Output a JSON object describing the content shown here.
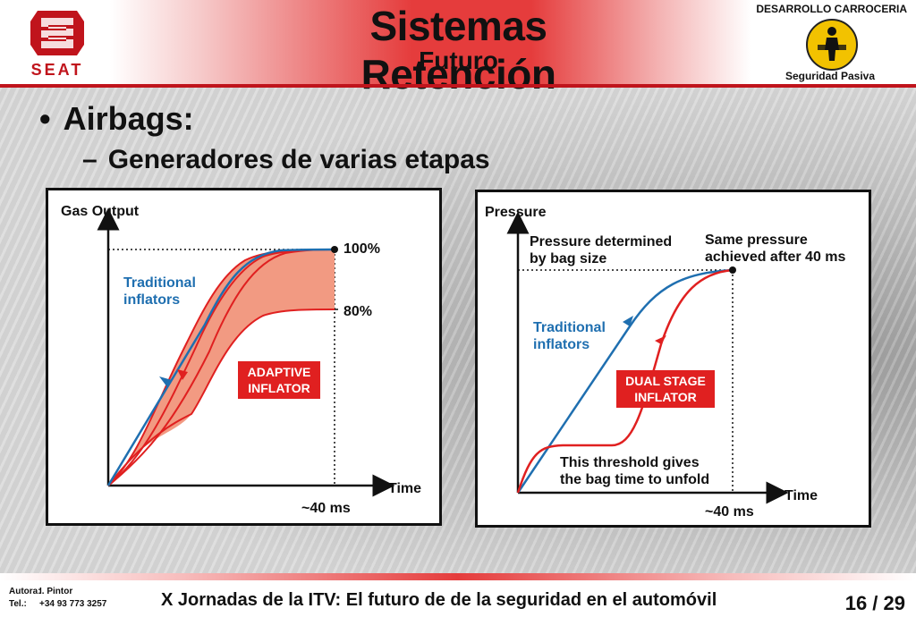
{
  "header": {
    "title": "Sistemas Retención",
    "subtitle": "Futuro",
    "department": "DESARROLLO CARROCERIA",
    "area": "Seguridad Pasiva",
    "brand": "SEAT"
  },
  "bullets": {
    "level1": "Airbags:",
    "level2": "Generadores de varias etapas"
  },
  "colors": {
    "brand_red": "#c0141c",
    "traditional_line": "#1f6fb0",
    "adaptive_line": "#e02020",
    "adaptive_fill": "#f29a82"
  },
  "chart_data": [
    {
      "type": "line",
      "title": "Gas Output",
      "xlabel": "Time",
      "x_marker": "~40 ms",
      "levels": [
        "100%",
        "80%"
      ],
      "series": [
        {
          "name": "Traditional inflators",
          "color": "#1f6fb0"
        },
        {
          "name": "ADAPTIVE INFLATOR",
          "color": "#e02020"
        }
      ],
      "annotations": [
        "Traditional inflators",
        "ADAPTIVE INFLATOR"
      ],
      "labels": {
        "ylabel": "Gas Output",
        "xlabel": "Time",
        "x_marker": "~40 ms",
        "level_high": "100%",
        "level_low": "80%",
        "trad_line1": "Traditional",
        "trad_line2": "inflators",
        "adaptive_line1": "ADAPTIVE",
        "adaptive_line2": "INFLATOR"
      }
    },
    {
      "type": "line",
      "title": "Pressure",
      "xlabel": "Time",
      "x_marker": "~40 ms",
      "series": [
        {
          "name": "Traditional inflators",
          "color": "#1f6fb0"
        },
        {
          "name": "DUAL STAGE INFLATOR",
          "color": "#e02020"
        }
      ],
      "annotations": [
        "Pressure determined by bag size",
        "Same pressure achieved after 40 ms",
        "This threshold gives the bag time to unfold"
      ],
      "labels": {
        "ylabel": "Pressure",
        "xlabel": "Time",
        "x_marker": "~40 ms",
        "pressure_line1": "Pressure determined",
        "pressure_line2": "by bag size",
        "same_line1": "Same pressure",
        "same_line2": "achieved after 40 ms",
        "trad_line1": "Traditional",
        "trad_line2": "inflators",
        "dual_line1": "DUAL STAGE",
        "dual_line2": "INFLATOR",
        "threshold_line1": "This threshold gives",
        "threshold_line2": "the bag time to unfold"
      }
    }
  ],
  "footer": {
    "author_label": "Autora:",
    "author_value": "I. Pintor",
    "tel_label": "Tel.:",
    "tel_value": "+34 93 773 3257",
    "event": "X Jornadas de la ITV: El futuro de de la seguridad en el automóvil",
    "page": "16 / 29"
  }
}
